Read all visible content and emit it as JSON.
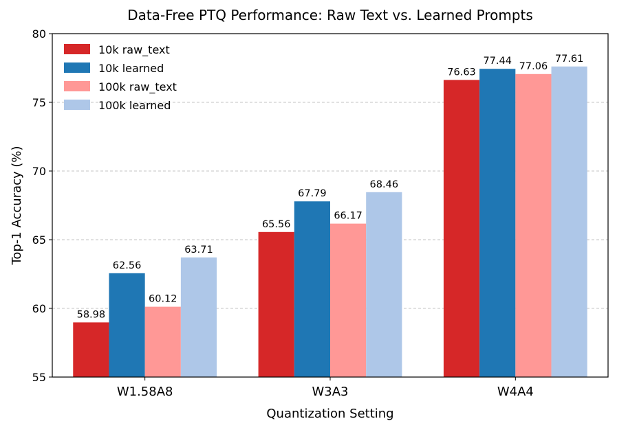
{
  "chart_data": {
    "type": "bar",
    "title": "Data-Free PTQ Performance: Raw Text vs. Learned Prompts",
    "xlabel": "Quantization Setting",
    "ylabel": "Top-1 Accuracy (%)",
    "ylim": [
      55,
      80
    ],
    "yticks": [
      55,
      60,
      65,
      70,
      75,
      80
    ],
    "grid": "y-dashed",
    "legend_position": "top-left",
    "categories": [
      "W1.58A8",
      "W3A3",
      "W4A4"
    ],
    "series": [
      {
        "name": "10k raw_text",
        "color": "#d62728",
        "values": [
          58.98,
          65.56,
          76.63
        ]
      },
      {
        "name": "10k learned",
        "color": "#1f77b4",
        "values": [
          62.56,
          67.79,
          77.44
        ]
      },
      {
        "name": "100k raw_text",
        "color": "#ff9896",
        "values": [
          60.12,
          66.17,
          77.06
        ]
      },
      {
        "name": "100k learned",
        "color": "#aec7e8",
        "values": [
          63.71,
          68.46,
          77.61
        ]
      }
    ]
  }
}
